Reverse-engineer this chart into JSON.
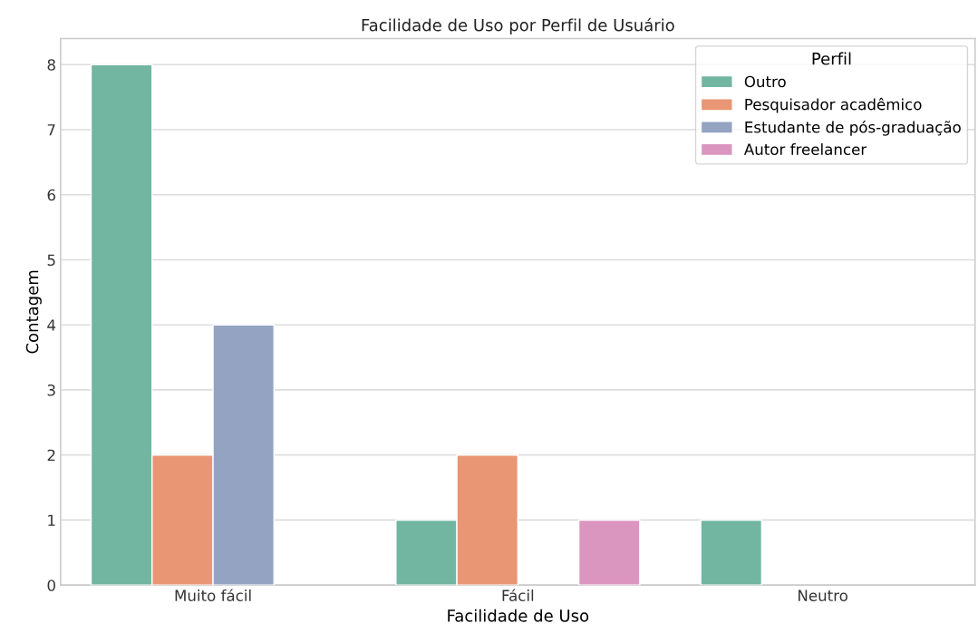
{
  "chart_data": {
    "type": "bar",
    "title": "Facilidade de Uso por Perfil de Usuário",
    "xlabel": "Facilidade de Uso",
    "ylabel": "Contagem",
    "legend_title": "Perfil",
    "categories": [
      "Muito fácil",
      "Fácil",
      "Neutro"
    ],
    "series": [
      {
        "name": "Outro",
        "color": "#72b6a1",
        "values": [
          8,
          1,
          1
        ]
      },
      {
        "name": "Pesquisador acadêmico",
        "color": "#e99675",
        "values": [
          2,
          2,
          null
        ]
      },
      {
        "name": "Estudante de pós-graduação",
        "color": "#95a3c3",
        "values": [
          4,
          null,
          null
        ]
      },
      {
        "name": "Autor freelancer",
        "color": "#db96c0",
        "values": [
          null,
          1,
          null
        ]
      }
    ],
    "ylim": [
      0,
      8.4
    ],
    "yticks": [
      0,
      1,
      2,
      3,
      4,
      5,
      6,
      7,
      8
    ],
    "grid": "y",
    "legend": "top right"
  }
}
